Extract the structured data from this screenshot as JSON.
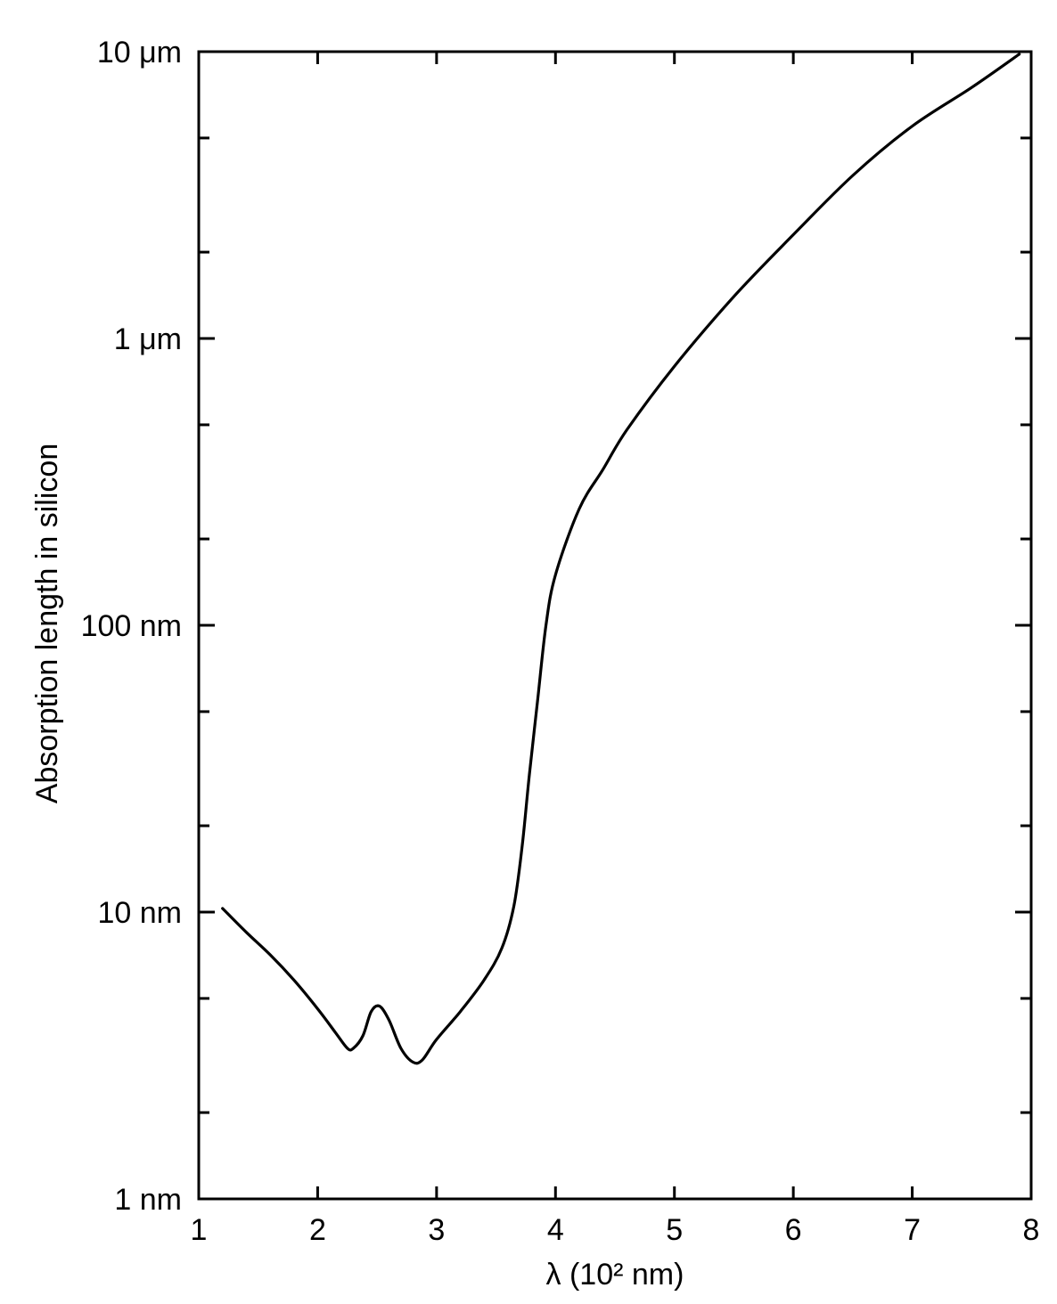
{
  "chart_data": {
    "type": "line",
    "title": "",
    "xlabel": "λ (10² nm)",
    "ylabel": "Absorption length in silicon",
    "xlim": [
      1,
      8
    ],
    "ylim_nm": [
      1,
      10000
    ],
    "y_scale": "log",
    "grid": false,
    "x_ticks": [
      {
        "value": 1,
        "label": "1"
      },
      {
        "value": 2,
        "label": "2"
      },
      {
        "value": 3,
        "label": "3"
      },
      {
        "value": 4,
        "label": "4"
      },
      {
        "value": 5,
        "label": "5"
      },
      {
        "value": 6,
        "label": "6"
      },
      {
        "value": 7,
        "label": "7"
      },
      {
        "value": 8,
        "label": "8"
      }
    ],
    "y_ticks": [
      {
        "value_nm": 1,
        "label": "1 nm"
      },
      {
        "value_nm": 10,
        "label": "10 nm"
      },
      {
        "value_nm": 100,
        "label": "100 nm"
      },
      {
        "value_nm": 1000,
        "label": "1 μm"
      },
      {
        "value_nm": 10000,
        "label": "10 μm"
      }
    ],
    "y_minor_ticks_nm": [
      2,
      5,
      20,
      50,
      200,
      500,
      2000,
      5000
    ],
    "series": [
      {
        "color": "#000000",
        "x": [
          1.2,
          1.4,
          1.6,
          1.8,
          2.0,
          2.15,
          2.25,
          2.3,
          2.38,
          2.45,
          2.52,
          2.6,
          2.7,
          2.8,
          2.88,
          3.0,
          3.2,
          3.4,
          3.55,
          3.65,
          3.72,
          3.78,
          3.85,
          3.92,
          4.0,
          4.2,
          4.4,
          4.6,
          5.0,
          5.5,
          6.0,
          6.5,
          7.0,
          7.5,
          7.9
        ],
        "y_nm": [
          10.3,
          8.5,
          7.1,
          5.8,
          4.6,
          3.8,
          3.35,
          3.35,
          3.7,
          4.5,
          4.7,
          4.2,
          3.35,
          3.0,
          3.05,
          3.6,
          4.5,
          5.8,
          7.5,
          10.5,
          17,
          30,
          55,
          100,
          150,
          255,
          350,
          480,
          800,
          1400,
          2300,
          3700,
          5500,
          7500,
          9800
        ]
      }
    ]
  }
}
